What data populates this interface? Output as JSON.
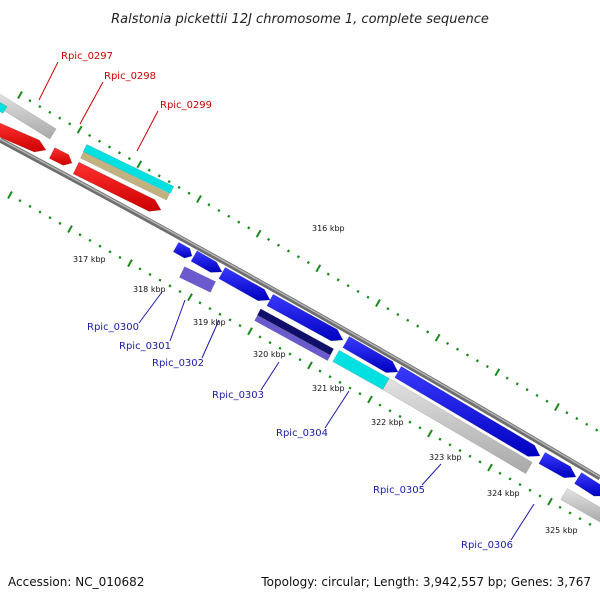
{
  "title": "Ralstonia pickettii 12J chromosome 1, complete sequence",
  "footer": {
    "accession": "Accession: NC_010682",
    "topology": "Topology: circular; Length: 3,942,557 bp; Genes: 3,767"
  },
  "kbp_labels": [
    "316 kbp",
    "317 kbp",
    "318 kbp",
    "319 kbp",
    "320 kbp",
    "321 kbp",
    "322 kbp",
    "323 kbp",
    "324 kbp",
    "325 kbp"
  ],
  "gene_labels": [
    {
      "id": "Rpic_0297",
      "color": "#cc0000"
    },
    {
      "id": "Rpic_0298",
      "color": "#cc0000"
    },
    {
      "id": "Rpic_0299",
      "color": "#cc0000"
    },
    {
      "id": "Rpic_0300",
      "color": "#1a1aa8"
    },
    {
      "id": "Rpic_0301",
      "color": "#1a1aa8"
    },
    {
      "id": "Rpic_0302",
      "color": "#1a1aa8"
    },
    {
      "id": "Rpic_0303",
      "color": "#1a1aa8"
    },
    {
      "id": "Rpic_0304",
      "color": "#1a1aa8"
    },
    {
      "id": "Rpic_0305",
      "color": "#1a1aa8"
    },
    {
      "id": "Rpic_0306",
      "color": "#1a1aa8"
    }
  ],
  "colors": {
    "forward_cds": "#0000e0",
    "reverse_cds": "#ee0000",
    "gene_gray": "#c8c8c8",
    "cyan": "#00e0e0",
    "tan": "#c2b280",
    "purple": "#6a5acd",
    "navy": "#10106a",
    "backbone": "#7a7a7a",
    "tick_green": "#1a8a1a"
  }
}
